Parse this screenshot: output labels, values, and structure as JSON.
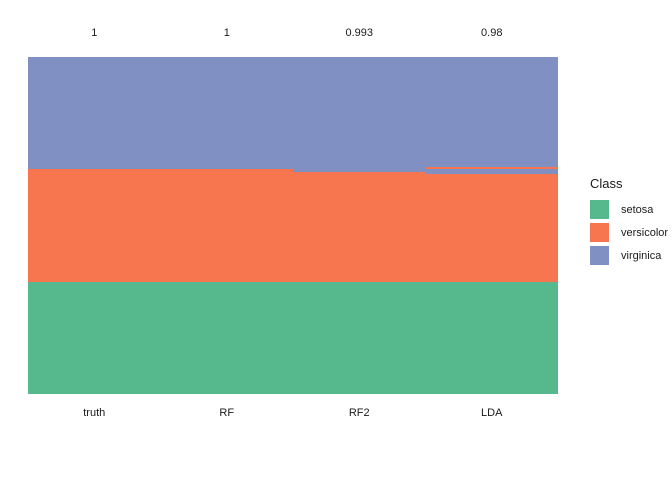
{
  "figure": {
    "background": "#FFFFFF",
    "text_color": "#1A1A1A"
  },
  "chart_data": {
    "type": "bar",
    "subtype": "stacked-class-prediction-columns",
    "title": "",
    "categories": [
      "truth",
      "RF",
      "RF2",
      "LDA"
    ],
    "top_labels": [
      "1",
      "1",
      "0.993",
      "0.98"
    ],
    "total_per_column": 150,
    "classes": [
      {
        "name": "setosa",
        "color": "#55B98D"
      },
      {
        "name": "versicolor",
        "color": "#F8764F"
      },
      {
        "name": "virginica",
        "color": "#8090C3"
      }
    ],
    "columns": [
      {
        "label": "truth",
        "accuracy_label": "1",
        "segments": [
          {
            "class": "virginica",
            "count": 50
          },
          {
            "class": "versicolor",
            "count": 50
          },
          {
            "class": "setosa",
            "count": 50
          }
        ]
      },
      {
        "label": "RF",
        "accuracy_label": "1",
        "segments": [
          {
            "class": "virginica",
            "count": 50
          },
          {
            "class": "versicolor",
            "count": 50
          },
          {
            "class": "setosa",
            "count": 50
          }
        ]
      },
      {
        "label": "RF2",
        "accuracy_label": "0.993",
        "segments": [
          {
            "class": "virginica",
            "count": 51
          },
          {
            "class": "versicolor",
            "count": 49
          },
          {
            "class": "setosa",
            "count": 50
          }
        ]
      },
      {
        "label": "LDA",
        "accuracy_label": "0.98",
        "segments": [
          {
            "class": "virginica",
            "count": 49
          },
          {
            "class": "versicolor",
            "count": 1
          },
          {
            "class": "virginica",
            "count": 2
          },
          {
            "class": "versicolor",
            "count": 48
          },
          {
            "class": "setosa",
            "count": 50
          }
        ]
      }
    ],
    "legend": {
      "title": "Class",
      "position": "right",
      "items": [
        "setosa",
        "versicolor",
        "virginica"
      ]
    },
    "axes": {
      "x_ticks": [
        "truth",
        "RF",
        "RF2",
        "LDA"
      ],
      "y_axis": "hidden",
      "grid": false
    }
  }
}
